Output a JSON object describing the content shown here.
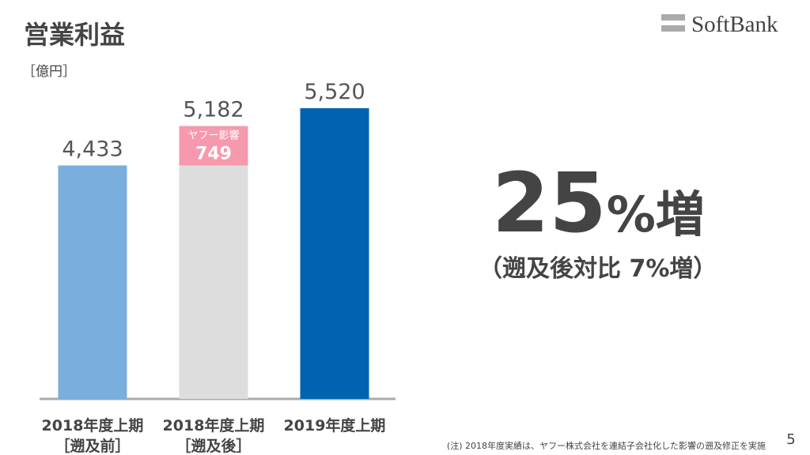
{
  "title": "営業利益",
  "unit": "［億円］",
  "logo": "SoftBank",
  "chart_data": {
    "type": "stacked-bar",
    "categories": [
      [
        "2018年度上期",
        "［遡及前］"
      ],
      [
        "2018年度上期",
        "［遡及後］"
      ],
      [
        "2019年度上期"
      ]
    ],
    "series": [
      {
        "values": [
          4433,
          4433,
          5520
        ],
        "colors": [
          "#7aaedc",
          "#dddddd",
          "#0062b1"
        ]
      },
      {
        "name": "ヤフー影響",
        "values": [
          null,
          749,
          null
        ],
        "color": "#f799ad"
      }
    ],
    "totals": [
      4433,
      5182,
      5520
    ],
    "total_labels": [
      "4,433",
      "5,182",
      "5,520"
    ]
  },
  "headline": {
    "number": 25,
    "unit": "%増",
    "note": "（遡及後対比 7%増）"
  },
  "footnote": "(注) 2018年度実績は、ヤフー株式会社を連結子会社化した影響の遡及修正を実施",
  "page_number": "5"
}
